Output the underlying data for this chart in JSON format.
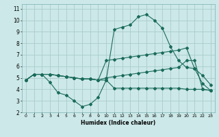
{
  "xlabel": "Humidex (Indice chaleur)",
  "background_color": "#cce8e8",
  "grid_color": "#aacccc",
  "line_color": "#1a6b5a",
  "xlim": [
    -0.5,
    23.5
  ],
  "ylim": [
    2,
    11.4
  ],
  "xticks": [
    0,
    1,
    2,
    3,
    4,
    5,
    6,
    7,
    8,
    9,
    10,
    11,
    12,
    13,
    14,
    15,
    16,
    17,
    18,
    19,
    20,
    21,
    22,
    23
  ],
  "yticks": [
    2,
    3,
    4,
    5,
    6,
    7,
    8,
    9,
    10,
    11
  ],
  "line1_x": [
    0,
    1,
    2,
    3,
    4,
    5,
    6,
    7,
    8,
    9,
    10,
    11,
    12,
    13,
    14,
    15,
    16,
    17,
    18,
    19,
    20,
    21,
    22,
    23
  ],
  "line1_y": [
    4.8,
    5.3,
    5.3,
    4.6,
    3.7,
    3.5,
    3.0,
    2.5,
    2.7,
    3.3,
    4.8,
    4.1,
    4.1,
    4.1,
    4.1,
    4.1,
    4.1,
    4.1,
    4.1,
    4.1,
    4.0,
    4.0,
    4.0,
    3.9
  ],
  "line2_x": [
    0,
    1,
    2,
    3,
    4,
    5,
    6,
    7,
    8,
    9,
    10,
    11,
    12,
    13,
    14,
    15,
    16,
    17,
    18,
    19,
    20,
    21,
    22,
    23
  ],
  "line2_y": [
    4.8,
    5.3,
    5.3,
    5.3,
    5.2,
    5.1,
    5.0,
    4.9,
    4.9,
    4.8,
    5.0,
    5.1,
    5.2,
    5.3,
    5.4,
    5.5,
    5.6,
    5.7,
    5.8,
    5.9,
    6.5,
    6.5,
    4.0,
    3.9
  ],
  "line3_x": [
    0,
    1,
    2,
    3,
    4,
    5,
    6,
    7,
    8,
    9,
    10,
    11,
    12,
    13,
    14,
    15,
    16,
    17,
    18,
    19,
    20,
    21,
    22,
    23
  ],
  "line3_y": [
    4.8,
    5.3,
    5.3,
    5.3,
    5.2,
    5.1,
    5.0,
    4.9,
    4.9,
    4.8,
    6.5,
    6.6,
    6.7,
    6.8,
    6.9,
    7.0,
    7.1,
    7.2,
    7.3,
    7.4,
    7.6,
    5.8,
    5.2,
    4.4
  ],
  "line4_x": [
    0,
    1,
    2,
    3,
    4,
    5,
    6,
    7,
    8,
    9,
    10,
    11,
    12,
    13,
    14,
    15,
    16,
    17,
    18,
    19,
    20,
    21,
    22,
    23
  ],
  "line4_y": [
    4.8,
    5.3,
    5.3,
    5.3,
    5.2,
    5.1,
    5.0,
    4.9,
    4.9,
    4.8,
    4.8,
    9.2,
    9.4,
    9.6,
    10.3,
    10.5,
    10.0,
    9.3,
    7.7,
    6.5,
    5.9,
    5.8,
    4.5,
    3.9
  ]
}
